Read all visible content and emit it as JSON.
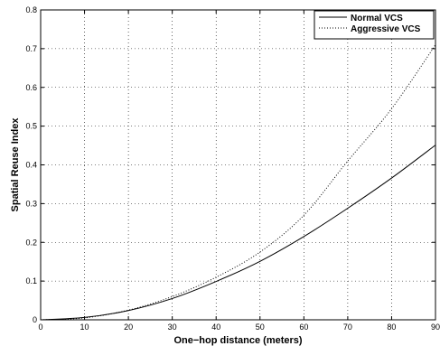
{
  "chart_data": {
    "type": "line",
    "xlabel": "One−hop distance (meters)",
    "ylabel": "Spatial Reuse Index",
    "xlim": [
      0,
      90
    ],
    "ylim": [
      0,
      0.8
    ],
    "xticks": [
      "0",
      "10",
      "20",
      "30",
      "40",
      "50",
      "60",
      "70",
      "80",
      "90"
    ],
    "yticks": [
      "0",
      "0.1",
      "0.2",
      "0.3",
      "0.4",
      "0.5",
      "0.6",
      "0.7",
      "0.8"
    ],
    "grid": true,
    "legend_position": "top-right",
    "series": [
      {
        "name": "Normal VCS",
        "style": "solid",
        "color": "#000000",
        "x": [
          0,
          10,
          20,
          30,
          40,
          50,
          60,
          70,
          80,
          90
        ],
        "y": [
          0,
          0.006,
          0.024,
          0.055,
          0.099,
          0.151,
          0.215,
          0.288,
          0.366,
          0.451
        ]
      },
      {
        "name": "Aggressive VCS",
        "style": "dotted",
        "color": "#000000",
        "x": [
          0,
          10,
          20,
          30,
          40,
          50,
          60,
          70,
          80,
          90
        ],
        "y": [
          0,
          0.005,
          0.025,
          0.06,
          0.11,
          0.175,
          0.27,
          0.41,
          0.545,
          0.71
        ]
      }
    ]
  }
}
